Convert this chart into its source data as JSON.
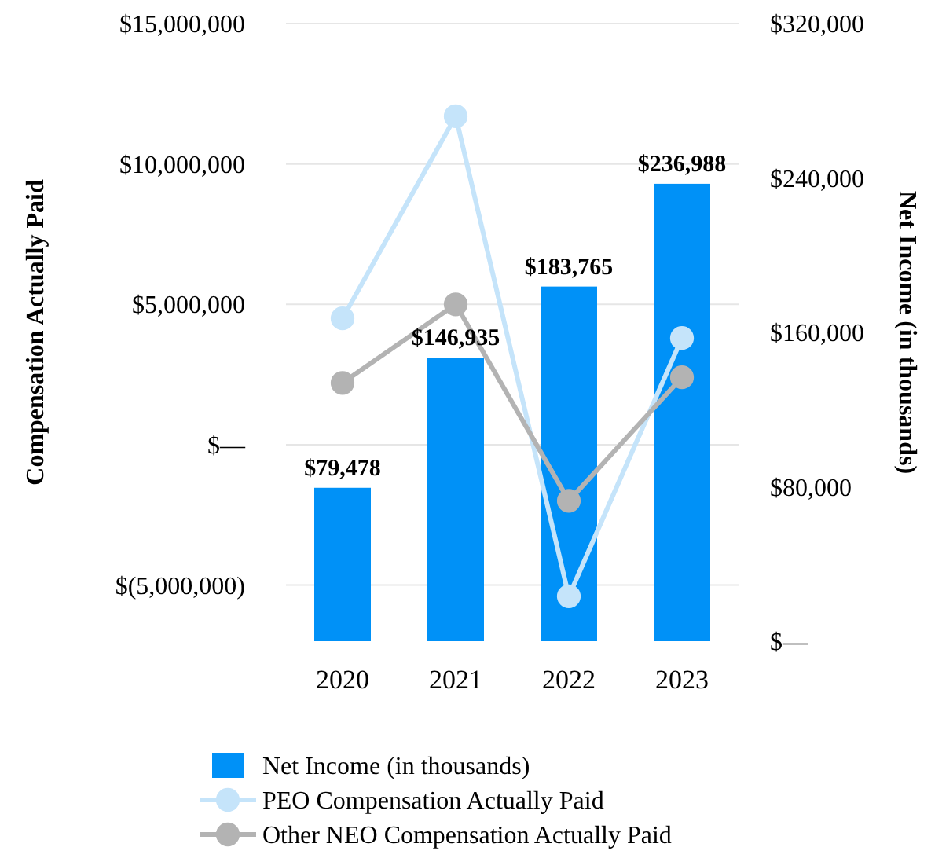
{
  "chart_data": {
    "type": "bar",
    "ylabel": "Compensation Actually Paid",
    "y2label": "Net Income (in thousands)",
    "categories": [
      "2020",
      "2021",
      "2022",
      "2023"
    ],
    "series": [
      {
        "name": "Net Income (in thousands)",
        "axis": "y2",
        "color": "#0091f7",
        "values": [
          79478,
          146935,
          183765,
          236988
        ],
        "value_labels": [
          "$79,478",
          "$146,935",
          "$183,765",
          "$236,988"
        ]
      },
      {
        "name": "PEO Compensation Actually Paid",
        "type": "line",
        "color": "#c5e4fa",
        "values": [
          4500000,
          11700000,
          -5400000,
          3800000
        ]
      },
      {
        "name": "Other NEO Compensation Actually Paid",
        "type": "line",
        "color": "#b3b3b3",
        "values": [
          2200000,
          5000000,
          -2000000,
          2400000
        ]
      }
    ],
    "ylim": [
      -7000000,
      15000000
    ],
    "yticks": [
      {
        "value": -5000000,
        "label": "$(5,000,000)"
      },
      {
        "value": 0,
        "label": "$—"
      },
      {
        "value": 5000000,
        "label": "$5,000,000"
      },
      {
        "value": 10000000,
        "label": "$10,000,000"
      },
      {
        "value": 15000000,
        "label": "$15,000,000"
      }
    ],
    "y2lim": [
      0,
      320000
    ],
    "y2ticks": [
      {
        "value": 0,
        "label": "$—"
      },
      {
        "value": 80000,
        "label": "$80,000"
      },
      {
        "value": 160000,
        "label": "$160,000"
      },
      {
        "value": 240000,
        "label": "$240,000"
      },
      {
        "value": 320000,
        "label": "$320,000"
      }
    ],
    "grid": "y",
    "legend": "bottom",
    "marker": "circle",
    "line_style": "solid"
  }
}
